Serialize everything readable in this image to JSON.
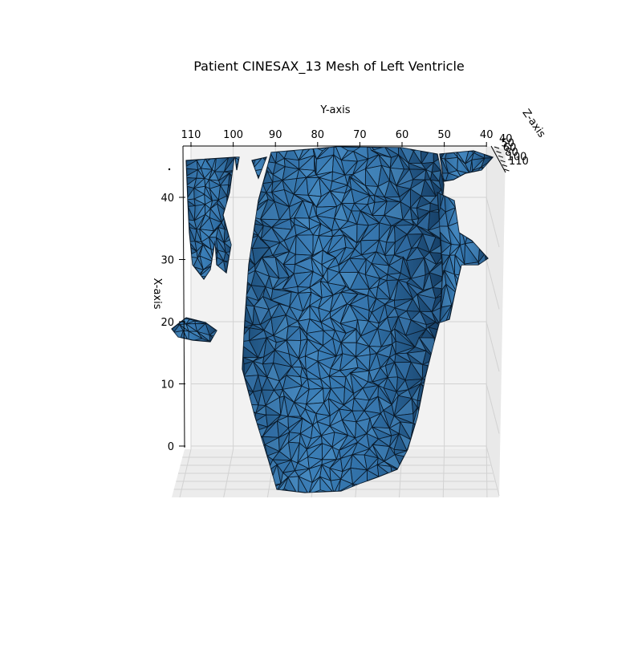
{
  "chart_data": {
    "type": "mesh3d",
    "title": "Patient CINESAX_13 Mesh of Left Ventricle",
    "ylabel_top": "Y-axis",
    "xlabel_left": "X-axis",
    "zlabel": "Z-axis",
    "y_ticks": [
      "110",
      "100",
      "90",
      "80",
      "70",
      "60",
      "50",
      "40"
    ],
    "x_ticks": [
      "0",
      "10",
      "20",
      "30",
      "40"
    ],
    "z_ticks": [
      "40",
      "50",
      "60",
      "80",
      "100",
      "110"
    ],
    "y_range": [
      37,
      113
    ],
    "x_range": [
      -8,
      48
    ],
    "mesh_color": "#3b7fb8",
    "edge_color": "#0a1a2a",
    "pane_color": "#f2f2f2",
    "grid": true
  }
}
